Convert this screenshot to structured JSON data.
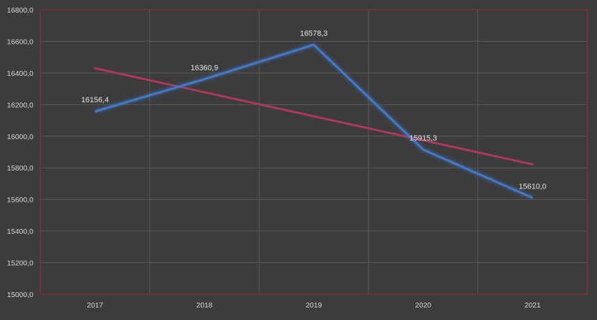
{
  "colors": {
    "background": "#3c3c3c",
    "plot_border": "#9e2a3a",
    "grid": "#595959",
    "series_line": "#4a7cc6",
    "series_glow": "#3a6cc0",
    "trend_line": "#b0385a",
    "tick_text": "#d9d9d9"
  },
  "chart_data": {
    "type": "line",
    "title": "",
    "xlabel": "",
    "ylabel": "",
    "categories": [
      "2017",
      "2018",
      "2019",
      "2020",
      "2021"
    ],
    "series": [
      {
        "values": [
          16156.4,
          16360.9,
          16578.3,
          15915.3,
          15610.0
        ],
        "data_labels": [
          "16156,4",
          "16360,9",
          "16578,3",
          "15915,3",
          "15610,0"
        ]
      }
    ],
    "trendline": {
      "kind": "linear",
      "values": [
        16430,
        16278,
        16126,
        15974,
        15822
      ]
    },
    "ylim": [
      15000,
      16800
    ],
    "y_ticks": [
      15000,
      15200,
      15400,
      15600,
      15800,
      16000,
      16200,
      16400,
      16600,
      16800
    ],
    "y_tick_labels": [
      "15000,0",
      "15200,0",
      "15400,0",
      "15600,0",
      "15800,0",
      "16000,0",
      "16200,0",
      "16400,0",
      "16600,0",
      "16800,0"
    ],
    "grid": true,
    "legend": "none"
  }
}
